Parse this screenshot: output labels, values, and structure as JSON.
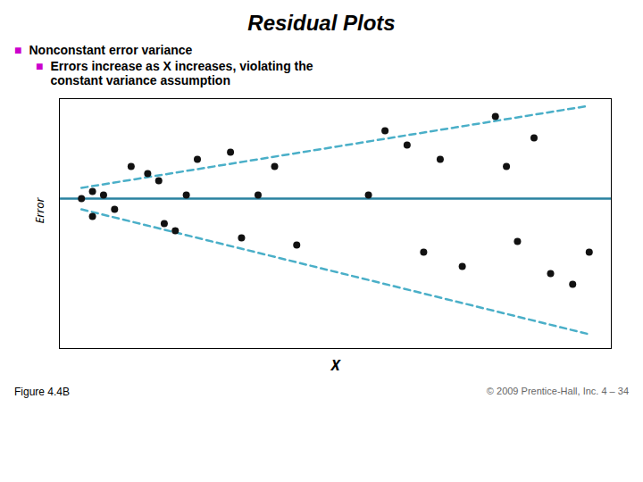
{
  "chart_data": {
    "type": "scatter",
    "title": "Residual Plots",
    "xlabel": "X",
    "ylabel": "Error",
    "x": [
      0.04,
      0.06,
      0.06,
      0.08,
      0.1,
      0.13,
      0.16,
      0.18,
      0.19,
      0.21,
      0.23,
      0.25,
      0.31,
      0.33,
      0.36,
      0.39,
      0.43,
      0.56,
      0.59,
      0.63,
      0.66,
      0.69,
      0.73,
      0.79,
      0.81,
      0.83,
      0.86,
      0.89,
      0.93,
      0.96
    ],
    "values": [
      0.0,
      0.02,
      -0.05,
      0.01,
      -0.03,
      0.09,
      0.07,
      0.05,
      -0.07,
      -0.09,
      0.01,
      0.11,
      0.13,
      -0.11,
      0.01,
      0.09,
      -0.13,
      0.01,
      0.19,
      0.15,
      -0.15,
      0.11,
      -0.19,
      0.23,
      0.09,
      -0.12,
      0.17,
      -0.21,
      -0.24,
      -0.15
    ],
    "color": "#111111",
    "xlim": [
      0,
      1.0
    ],
    "ylim": [
      -0.42,
      0.28
    ],
    "tick_labels": false,
    "grid": false,
    "zero_line": {
      "value": 0.0,
      "color": "#2882a0"
    },
    "lines": [
      {
        "x": [
          0.04,
          0.96
        ],
        "values": [
          0.03,
          0.26
        ],
        "color": "#4aafc8",
        "line_style": "dashed"
      },
      {
        "x": [
          0.04,
          0.96
        ],
        "values": [
          -0.03,
          -0.38
        ],
        "color": "#4aafc8",
        "line_style": "dashed"
      }
    ],
    "annotations": [
      {
        "bullet": "■",
        "text": "Nonconstant error variance",
        "color": "#cc00cc"
      },
      {
        "bullet": "■",
        "text": "Errors increase as X increases, violating the\nconstant variance assumption",
        "color": "#cc00cc"
      }
    ],
    "figure_label": "Figure 4.4B",
    "copyright": "© 2009 Prentice-Hall, Inc.   4 – 34"
  }
}
